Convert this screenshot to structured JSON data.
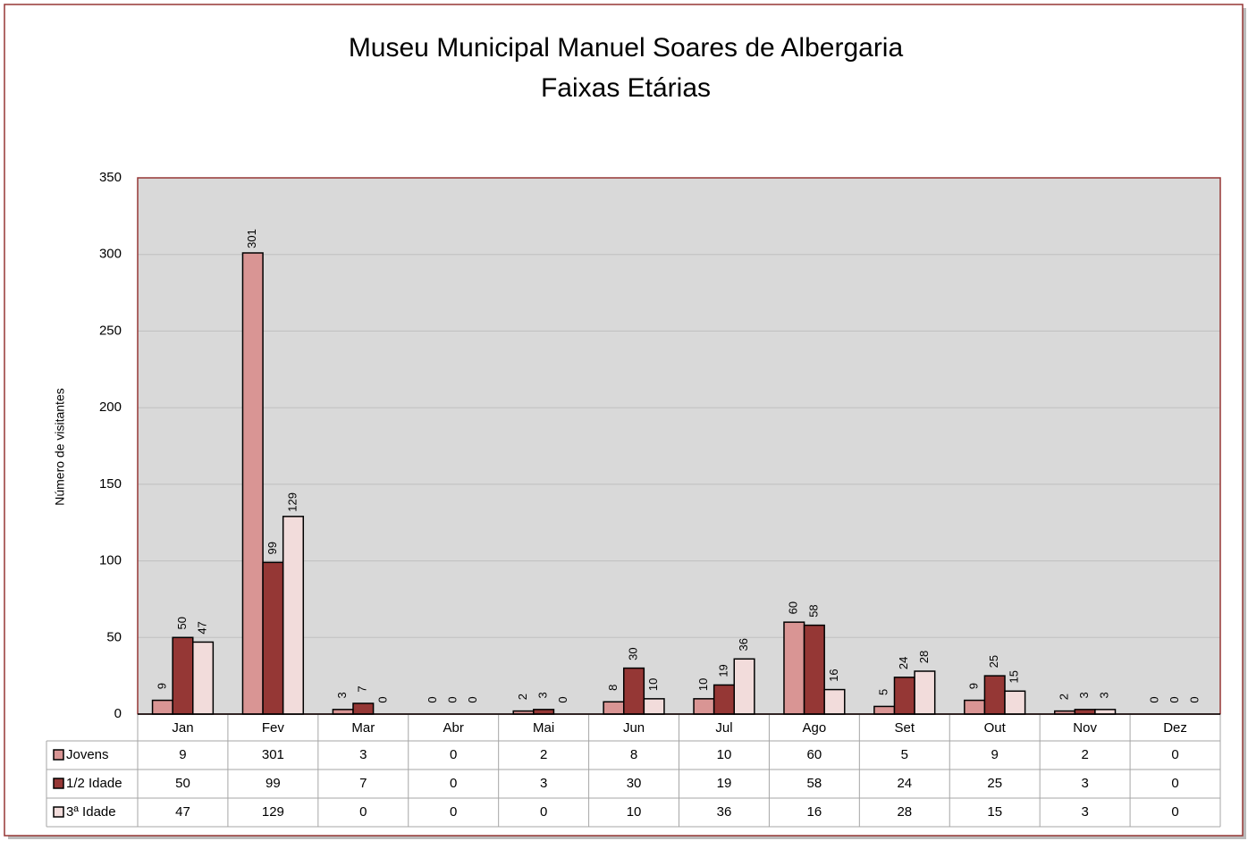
{
  "chart_data": {
    "type": "bar",
    "title": "Museu Municipal Manuel Soares de Albergaria",
    "subtitle": "Faixas Etárias",
    "y_label": "Número de visitantes",
    "categories": [
      "Jan",
      "Fev",
      "Mar",
      "Abr",
      "Mai",
      "Jun",
      "Jul",
      "Ago",
      "Set",
      "Out",
      "Nov",
      "Dez"
    ],
    "series": [
      {
        "name": "Jovens",
        "color": "#d99594",
        "values": [
          9,
          301,
          3,
          0,
          2,
          8,
          10,
          60,
          5,
          9,
          2,
          0
        ]
      },
      {
        "name": "1/2 Idade",
        "color": "#953735",
        "values": [
          50,
          99,
          7,
          0,
          3,
          30,
          19,
          58,
          24,
          25,
          3,
          0
        ]
      },
      {
        "name": "3ª Idade",
        "color": "#f2dcdb",
        "values": [
          47,
          129,
          0,
          0,
          0,
          10,
          36,
          16,
          28,
          15,
          3,
          0
        ]
      }
    ],
    "ylim": [
      0,
      350
    ],
    "yticks": [
      0,
      50,
      100,
      150,
      200,
      250,
      300,
      350
    ],
    "grid": true
  }
}
